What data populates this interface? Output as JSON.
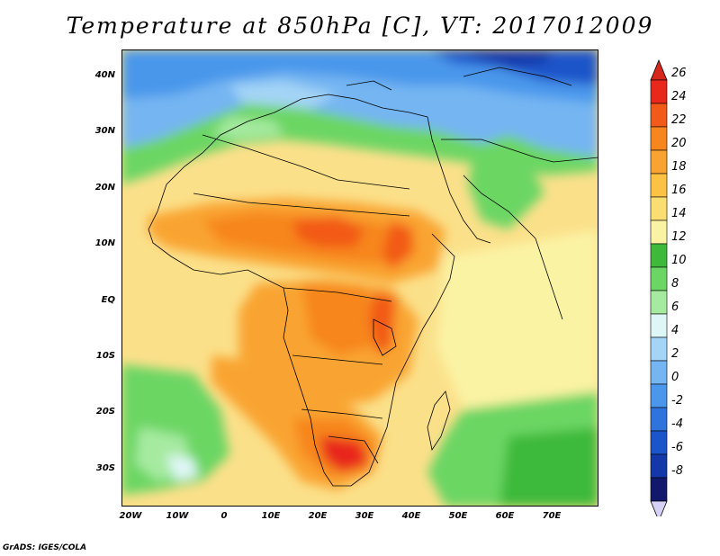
{
  "title": "Temperature at 850hPa [C], VT: 2017012009",
  "credit": "GrADS: IGES/COLA",
  "map": {
    "region": "Africa and Middle East",
    "lat_labels": [
      "40N",
      "30N",
      "20N",
      "10N",
      "EQ",
      "10S",
      "20S",
      "30S"
    ],
    "lon_labels": [
      "20W",
      "10W",
      "0",
      "10E",
      "20E",
      "30E",
      "40E",
      "50E",
      "60E",
      "70E"
    ]
  },
  "colorbar": {
    "labels": [
      "26",
      "24",
      "22",
      "20",
      "18",
      "16",
      "14",
      "12",
      "10",
      "8",
      "6",
      "4",
      "2",
      "0",
      "-2",
      "-4",
      "-6",
      "-8"
    ],
    "colors": [
      "#e8281c",
      "#f25a19",
      "#f7861f",
      "#f9a431",
      "#fcc244",
      "#fbde72",
      "#fbf3a4",
      "#3eb93a",
      "#6cd664",
      "#a6eaa0",
      "#dff6f6",
      "#a4d4f6",
      "#74b5f2",
      "#4a97eb",
      "#2f74dc",
      "#1c54c9",
      "#1438aa",
      "#12196d"
    ],
    "top_arrow_color": "#d7261b",
    "bottom_arrow_color": "#d6d2f7"
  },
  "palette": {
    "map_background": "#fbe08a",
    "coastline_color": "#000000"
  }
}
